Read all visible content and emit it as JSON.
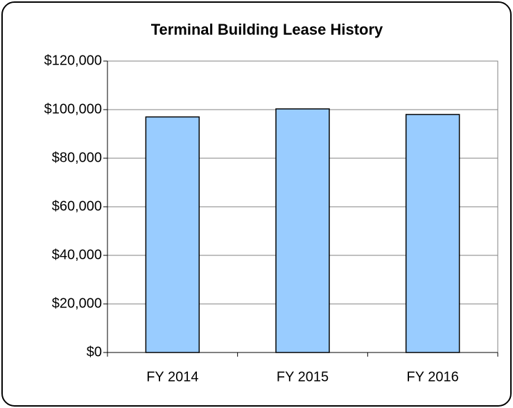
{
  "chart_data": {
    "type": "bar",
    "title": "Terminal Building Lease History",
    "categories": [
      "FY 2014",
      "FY 2015",
      "FY 2016"
    ],
    "values": [
      97000,
      100300,
      98000
    ],
    "color": "#99ccff",
    "ylim": [
      0,
      120000
    ],
    "yticks": [
      {
        "value": 0,
        "label": "$0"
      },
      {
        "value": 20000,
        "label": "$20,000"
      },
      {
        "value": 40000,
        "label": "$40,000"
      },
      {
        "value": 60000,
        "label": "$60,000"
      },
      {
        "value": 80000,
        "label": "$80,000"
      },
      {
        "value": 100000,
        "label": "$100,000"
      },
      {
        "value": 120000,
        "label": "$120,000"
      }
    ],
    "grid": true
  }
}
